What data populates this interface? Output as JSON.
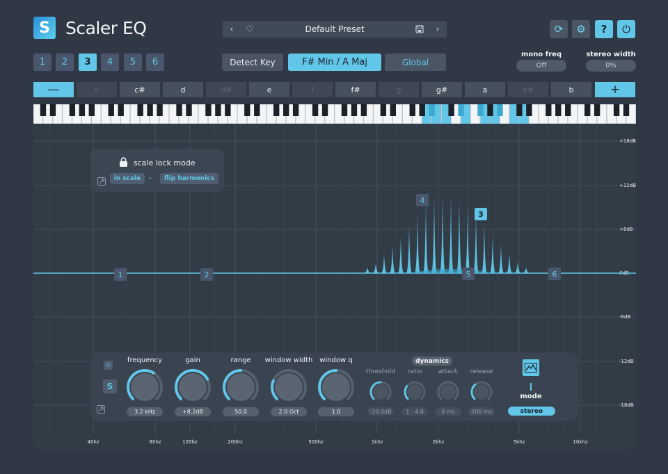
{
  "app": {
    "title": "Scaler EQ",
    "logo_letter": "S"
  },
  "preset": {
    "prev": "‹",
    "favorite": "♡",
    "name": "Default Preset",
    "save": "💾",
    "next": "›"
  },
  "header_buttons": {
    "refresh": "⟳",
    "settings": "⚙",
    "help": "?",
    "power": "⏻"
  },
  "bands": {
    "items": [
      "1",
      "2",
      "3",
      "4",
      "5",
      "6"
    ],
    "active": "3"
  },
  "key": {
    "detect_label": "Detect Key",
    "current_key": "F# Min / A Maj",
    "global_label": "Global"
  },
  "mono_freq": {
    "label": "mono freq",
    "value": "Off"
  },
  "stereo_width": {
    "label": "stereo width",
    "value": "0%"
  },
  "notes": {
    "minus": "—",
    "plus": "+",
    "items": [
      {
        "label": "c",
        "in_scale": false
      },
      {
        "label": "c#",
        "in_scale": true
      },
      {
        "label": "d",
        "in_scale": true
      },
      {
        "label": "d#",
        "in_scale": false
      },
      {
        "label": "e",
        "in_scale": true
      },
      {
        "label": "f",
        "in_scale": false
      },
      {
        "label": "f#",
        "in_scale": true
      },
      {
        "label": "g",
        "in_scale": false
      },
      {
        "label": "g#",
        "in_scale": true
      },
      {
        "label": "a",
        "in_scale": true
      },
      {
        "label": "a#",
        "in_scale": false
      },
      {
        "label": "b",
        "in_scale": true
      }
    ]
  },
  "scale_lock": {
    "title": "scale lock mode",
    "option_a": "in scale",
    "separator": "–",
    "option_b": "flip harmonics"
  },
  "graph": {
    "db_labels": [
      "+18dB",
      "+12dB",
      "+6dB",
      "0dB",
      "-6dB",
      "-12dB",
      "-18dB"
    ],
    "freq_labels": [
      "40hz",
      "80hz",
      "120hz",
      "200hz",
      "500hz",
      "1khz",
      "2khz",
      "5khz",
      "10khz"
    ],
    "band_markers": [
      {
        "label": "1",
        "active": false
      },
      {
        "label": "2",
        "active": false
      },
      {
        "label": "3",
        "active": true
      },
      {
        "label": "4",
        "active": false
      },
      {
        "label": "5",
        "active": false
      },
      {
        "label": "6",
        "active": false
      }
    ]
  },
  "controls": {
    "band_power": "⏻",
    "solo": "S",
    "link": "⤡",
    "knobs": [
      {
        "label": "frequency",
        "value": "3.2 kHz",
        "level": 0.62
      },
      {
        "label": "gain",
        "value": "+8.2dB",
        "level": 0.73
      },
      {
        "label": "range",
        "value": "50.0",
        "level": 0.5
      },
      {
        "label": "window width",
        "value": "2.0 Oct",
        "level": 0.25
      },
      {
        "label": "window q",
        "value": "1.0",
        "level": 0.5
      }
    ],
    "dynamics_label": "dynamics",
    "dynamics": [
      {
        "label": "threshold",
        "value": "-20.0dB",
        "level": 0.5
      },
      {
        "label": "ratio",
        "value": "1 : 4.0",
        "level": 0.3
      },
      {
        "label": "attack",
        "value": "0 ms",
        "level": 0.0
      },
      {
        "label": "release",
        "value": "200 ms",
        "level": 0.35
      }
    ],
    "mode_label": "mode",
    "mode_value": "stereo"
  },
  "colors": {
    "accent": "#61c6e7",
    "background": "#2f3844",
    "panel": "#3a4450"
  }
}
